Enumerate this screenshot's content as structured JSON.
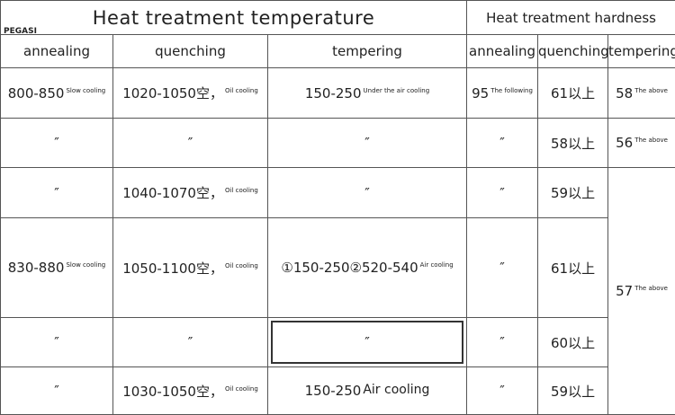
{
  "logo": "PEGASI",
  "header": {
    "temperature": "Heat treatment temperature",
    "hardness": "Heat treatment hardness",
    "columns": [
      "annealing",
      "quenching",
      "tempering",
      "annealing",
      "quenching",
      "tempering"
    ]
  },
  "rows": [
    [
      {
        "text": "800-850",
        "note": "Slow cooling"
      },
      {
        "text": "1020-1050空，",
        "note": "Oil cooling"
      },
      {
        "text": "150-250",
        "note": "Under the air cooling"
      },
      {
        "text": "95",
        "note": "The following"
      },
      {
        "text": "61以上"
      },
      {
        "text": "58",
        "note": "The above"
      }
    ],
    [
      {
        "text": "″"
      },
      {
        "text": "″"
      },
      {
        "text": "″"
      },
      {
        "text": "″"
      },
      {
        "text": "58以上"
      },
      {
        "text": "56",
        "note": "The above"
      }
    ],
    [
      {
        "text": "″"
      },
      {
        "text": "1040-1070空，",
        "note": "Oil cooling"
      },
      {
        "text": "″"
      },
      {
        "text": "″"
      },
      {
        "text": "59以上"
      },
      {
        "text": "57",
        "note": "The above"
      }
    ],
    [
      {
        "text": "830-880",
        "note": "Slow cooling"
      },
      {
        "text": "1050-1100空，",
        "note": "Oil cooling"
      },
      {
        "text": "①150-250②520-540",
        "note": "Air cooling"
      },
      {
        "text": "″"
      },
      {
        "text": "61以上"
      }
    ],
    [
      {
        "text": "″"
      },
      {
        "text": "″"
      },
      {
        "text": "″"
      },
      {
        "text": "″"
      },
      {
        "text": "60以上"
      }
    ],
    [
      {
        "text": "″"
      },
      {
        "text": "1030-1050空，",
        "note": "Oil cooling"
      },
      {
        "text": "150-250",
        "note": "Air cooling"
      },
      {
        "text": "″"
      },
      {
        "text": "59以上"
      }
    ]
  ]
}
